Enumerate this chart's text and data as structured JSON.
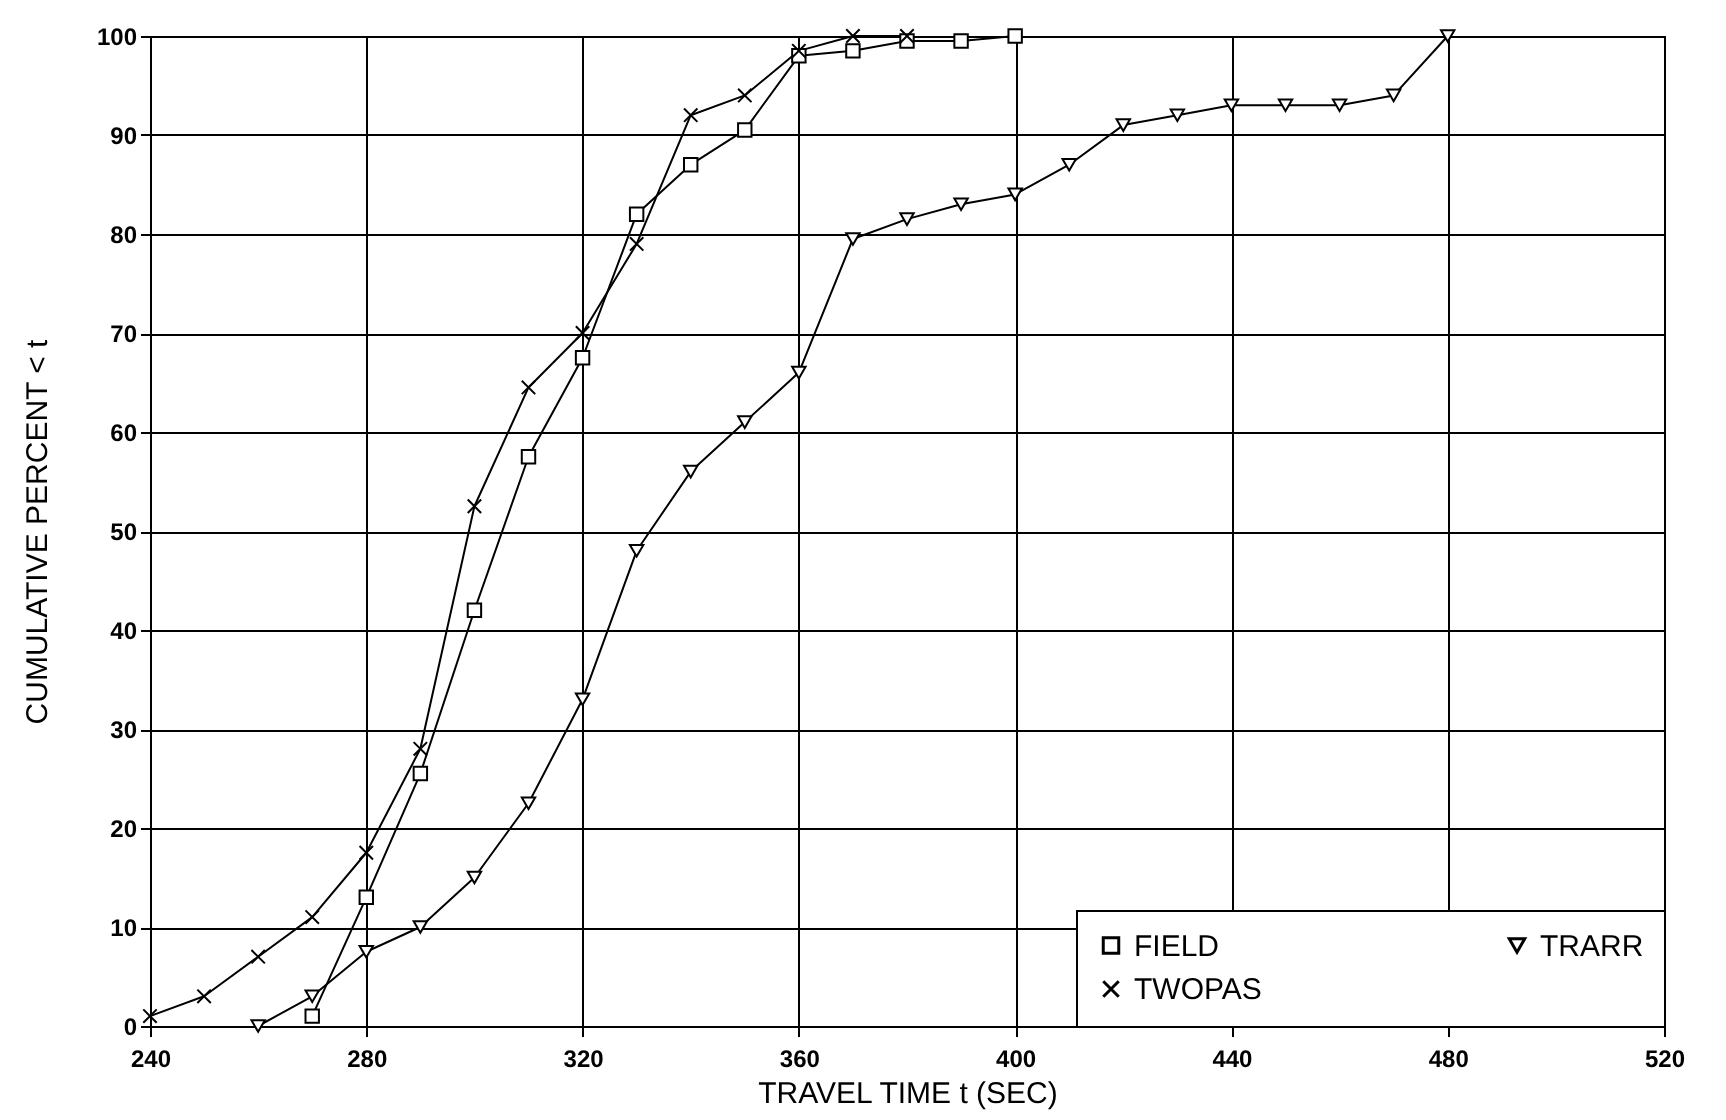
{
  "chart_data": {
    "type": "line",
    "xlabel": "TRAVEL TIME t (SEC)",
    "ylabel": "CUMULATIVE PERCENT < t",
    "xlim": [
      240,
      520
    ],
    "xticks": [
      240,
      280,
      320,
      360,
      400,
      440,
      480,
      520
    ],
    "ylim": [
      0,
      100
    ],
    "yticks": [
      0,
      10,
      20,
      30,
      40,
      50,
      60,
      70,
      80,
      90,
      100
    ],
    "grid": true,
    "legend": "bottom right",
    "line_style": "solid",
    "series": [
      {
        "name": "FIELD",
        "color": "#000000",
        "marker": "square",
        "x": [
          270,
          280,
          290,
          300,
          310,
          320,
          330,
          340,
          350,
          360,
          370,
          380,
          390,
          400
        ],
        "values": [
          1,
          13,
          25.5,
          42,
          57.5,
          67.5,
          82,
          87,
          90.5,
          98,
          98.5,
          99.5,
          99.5,
          100
        ]
      },
      {
        "name": "TWOPAS",
        "color": "#000000",
        "marker": "cross",
        "x": [
          240,
          250,
          260,
          270,
          280,
          290,
          300,
          310,
          320,
          330,
          340,
          350,
          360,
          370,
          380
        ],
        "values": [
          1,
          3,
          7,
          11,
          17.5,
          28,
          52.5,
          64.5,
          70,
          79,
          92,
          94,
          98.5,
          100,
          100
        ]
      },
      {
        "name": "TRARR",
        "color": "#000000",
        "marker": "triangle",
        "x": [
          260,
          270,
          280,
          290,
          300,
          310,
          320,
          330,
          340,
          350,
          360,
          370,
          380,
          390,
          400,
          410,
          420,
          430,
          440,
          450,
          460,
          470,
          480
        ],
        "values": [
          0,
          3,
          7.5,
          10,
          15,
          22.5,
          33,
          48,
          56,
          61,
          66,
          79.5,
          81.5,
          83,
          84,
          87,
          91,
          92,
          93,
          93,
          93,
          94,
          100
        ]
      }
    ]
  }
}
